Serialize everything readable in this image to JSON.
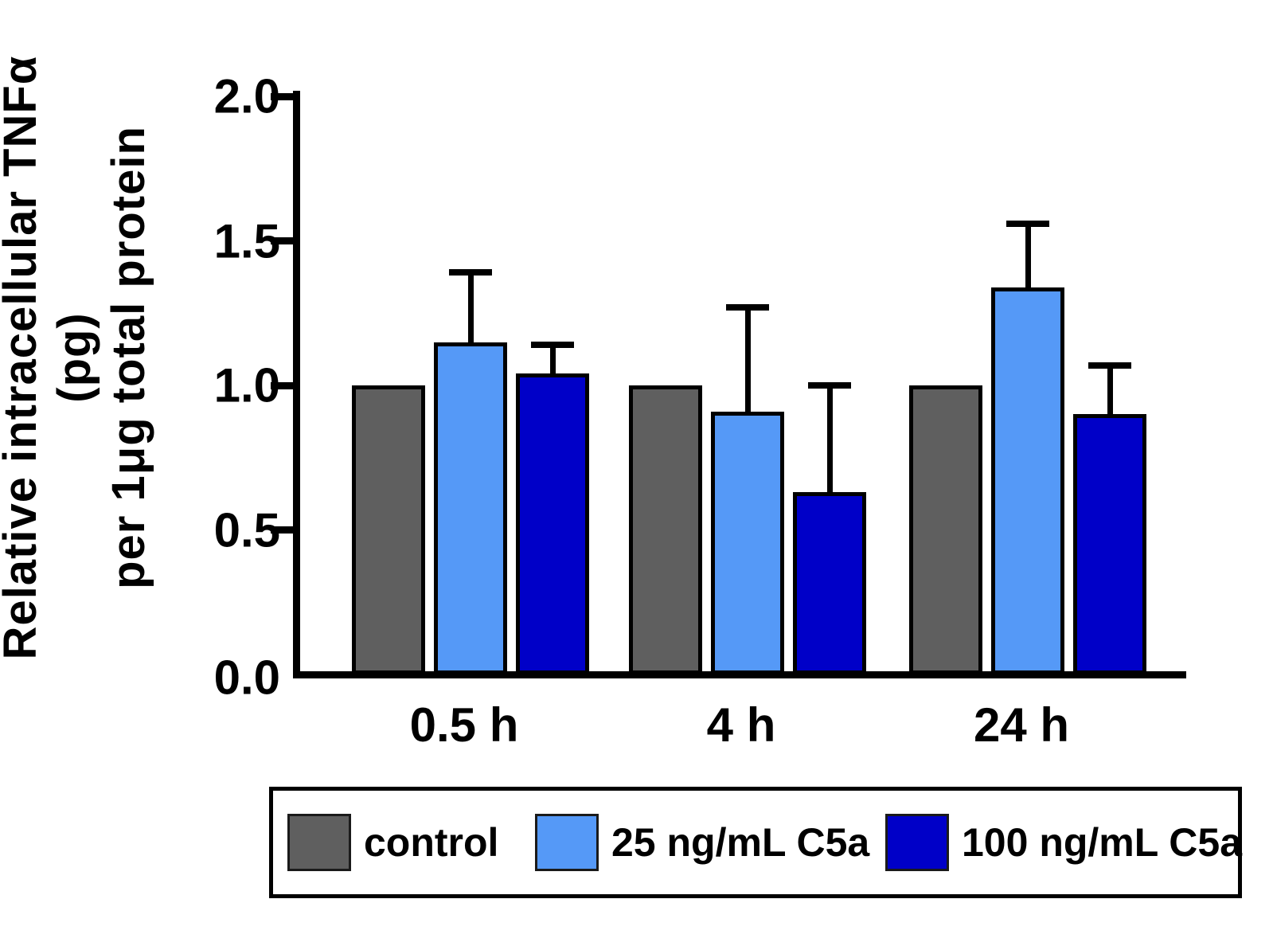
{
  "chart_data": {
    "type": "bar",
    "title": "",
    "ylabel_line1": "Relative intracellular TNFα (pg)",
    "ylabel_line2": "per 1μg total protein",
    "categories": [
      "0.5 h",
      "4 h",
      "24 h"
    ],
    "series": [
      {
        "name": "control",
        "color": "#5F5F5F",
        "values": [
          1.0,
          1.0,
          1.0
        ],
        "errors": [
          0,
          0,
          0
        ]
      },
      {
        "name": "25 ng/mL C5a",
        "color": "#5599F7",
        "values": [
          1.15,
          0.91,
          1.34
        ],
        "errors": [
          0.24,
          0.36,
          0.22
        ]
      },
      {
        "name": "100 ng/mL C5a",
        "color": "#0000C8",
        "values": [
          1.04,
          0.63,
          0.9
        ],
        "errors": [
          0.1,
          0.37,
          0.17
        ]
      }
    ],
    "ylim": [
      0.0,
      2.0
    ],
    "yticks": [
      0.0,
      0.5,
      1.0,
      1.5,
      2.0
    ],
    "ytick_labels": [
      "0.0",
      "0.5",
      "1.0",
      "1.5",
      "2.0"
    ],
    "grid": false,
    "legend_position": "bottom",
    "bar_outline_color": "#000000",
    "error_bar_color": "#000000",
    "background_color": "#ffffff"
  }
}
